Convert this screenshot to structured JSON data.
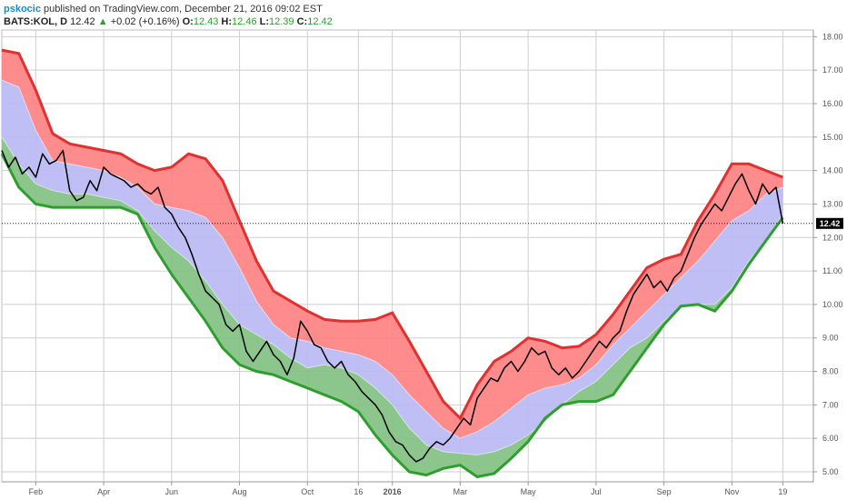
{
  "header": {
    "author": "pskocic",
    "published": "published on TradingView.com, December 21, 2016 09:02 EST"
  },
  "ticker": {
    "symbol": "BATS:KOL, D",
    "last": "12.42",
    "arrow": "▲",
    "change": "+0.02 (+0.16%)",
    "open_label": "O:",
    "open": "12.43",
    "high_label": "H:",
    "high": "12.46",
    "low_label": "L:",
    "low": "12.39",
    "close_label": "C:",
    "close": "12.42"
  },
  "price_tag": "12.42",
  "colors": {
    "upper_band": "#ff8080",
    "upper_band_line": "#e03030",
    "middle_band": "#b8b8f5",
    "lower_band": "#7fc07f",
    "lower_band_line": "#2e9e2e",
    "price_line": "#000000",
    "price_tag_bg": "#000000",
    "grid": "#cfcfcf"
  },
  "chart_data": {
    "type": "line",
    "ylim": [
      4.7,
      18.2
    ],
    "y_ticks": [
      5.0,
      6.0,
      7.0,
      8.0,
      9.0,
      10.0,
      11.0,
      12.0,
      13.0,
      14.0,
      15.0,
      16.0,
      17.0,
      18.0
    ],
    "x_ticks": [
      "Feb",
      "Apr",
      "Jun",
      "Aug",
      "Oct",
      "16",
      "2016",
      "Mar",
      "May",
      "Jul",
      "Sep",
      "Nov",
      "19"
    ],
    "x_tick_pos": [
      0.5,
      2.5,
      4.5,
      6.5,
      8.5,
      10.0,
      11.0,
      13.0,
      15.0,
      17.0,
      19.0,
      21.0,
      22.5
    ],
    "x_range": [
      -0.5,
      23.4
    ],
    "current_price": 12.42,
    "grid": true,
    "band_x": [
      -0.5,
      0.0,
      0.5,
      1.0,
      1.5,
      2.0,
      2.5,
      3.0,
      3.5,
      4.0,
      4.5,
      5.0,
      5.5,
      6.0,
      6.5,
      7.0,
      7.5,
      8.0,
      8.5,
      9.0,
      9.5,
      10.0,
      10.5,
      11.0,
      11.5,
      12.0,
      12.5,
      13.0,
      13.5,
      14.0,
      14.5,
      15.0,
      15.5,
      16.0,
      16.5,
      17.0,
      17.5,
      18.0,
      18.5,
      19.0,
      19.5,
      20.0,
      20.5,
      21.0,
      21.5,
      22.0,
      22.5
    ],
    "series": [
      {
        "values": [
          17.6,
          17.5,
          16.4,
          15.1,
          14.8,
          14.7,
          14.6,
          14.5,
          14.2,
          14.0,
          14.1,
          14.5,
          14.35,
          13.7,
          12.5,
          11.3,
          10.4,
          10.1,
          9.8,
          9.55,
          9.5,
          9.5,
          9.55,
          9.75,
          8.9,
          8.0,
          7.1,
          6.6,
          7.6,
          8.3,
          8.6,
          9.0,
          8.9,
          8.7,
          8.75,
          9.1,
          9.7,
          10.4,
          11.1,
          11.35,
          11.5,
          12.5,
          13.3,
          14.2,
          14.2,
          14.0,
          13.8
        ]
      },
      {
        "values": [
          16.7,
          16.5,
          15.2,
          14.3,
          14.2,
          14.1,
          14.0,
          13.8,
          13.5,
          13.0,
          12.9,
          12.8,
          12.6,
          12.0,
          11.1,
          10.1,
          9.4,
          9.0,
          8.9,
          8.7,
          8.6,
          8.5,
          8.3,
          7.9,
          7.3,
          6.8,
          6.3,
          6.0,
          6.2,
          6.5,
          6.9,
          7.3,
          7.5,
          7.6,
          7.8,
          8.2,
          8.8,
          9.3,
          9.8,
          10.3,
          10.8,
          11.3,
          11.9,
          12.5,
          12.8,
          13.3,
          13.5
        ]
      },
      {
        "values": [
          15.0,
          14.2,
          13.6,
          13.4,
          13.3,
          13.3,
          13.2,
          13.1,
          12.8,
          12.2,
          11.7,
          11.3,
          10.7,
          10.0,
          9.4,
          9.1,
          8.8,
          8.4,
          8.1,
          8.2,
          8.1,
          7.9,
          7.5,
          7.0,
          6.3,
          5.8,
          5.6,
          5.55,
          5.5,
          5.6,
          5.8,
          6.1,
          6.5,
          7.0,
          7.4,
          7.7,
          8.2,
          8.7,
          9.0,
          9.5,
          9.9,
          10.0,
          10.0,
          10.5,
          11.3,
          11.9,
          12.7
        ]
      },
      {
        "values": [
          14.5,
          13.5,
          13.0,
          12.9,
          12.9,
          12.9,
          12.9,
          12.9,
          12.7,
          11.7,
          10.9,
          10.2,
          9.5,
          8.7,
          8.2,
          8.0,
          7.9,
          7.7,
          7.5,
          7.3,
          7.1,
          6.8,
          6.1,
          5.5,
          5.0,
          4.9,
          5.1,
          5.2,
          4.85,
          4.95,
          5.4,
          5.9,
          6.6,
          7.0,
          7.1,
          7.1,
          7.3,
          8.0,
          8.7,
          9.4,
          9.95,
          10.0,
          9.8,
          10.4,
          11.2,
          11.9,
          12.6
        ]
      }
    ],
    "price_x": [
      -0.5,
      -0.3,
      -0.1,
      0.1,
      0.3,
      0.5,
      0.7,
      0.9,
      1.1,
      1.3,
      1.5,
      1.7,
      1.9,
      2.1,
      2.3,
      2.5,
      2.7,
      2.9,
      3.1,
      3.3,
      3.5,
      3.7,
      3.9,
      4.1,
      4.3,
      4.5,
      4.7,
      4.9,
      5.1,
      5.3,
      5.5,
      5.7,
      5.9,
      6.1,
      6.3,
      6.5,
      6.7,
      6.9,
      7.1,
      7.3,
      7.5,
      7.7,
      7.9,
      8.1,
      8.3,
      8.5,
      8.7,
      8.9,
      9.1,
      9.3,
      9.5,
      9.7,
      9.9,
      10.1,
      10.3,
      10.5,
      10.7,
      10.9,
      11.1,
      11.3,
      11.5,
      11.7,
      11.9,
      12.1,
      12.3,
      12.5,
      12.7,
      12.9,
      13.1,
      13.3,
      13.5,
      13.7,
      13.9,
      14.1,
      14.3,
      14.5,
      14.7,
      14.9,
      15.1,
      15.3,
      15.5,
      15.7,
      15.9,
      16.1,
      16.3,
      16.5,
      16.7,
      16.9,
      17.1,
      17.3,
      17.5,
      17.7,
      17.9,
      18.1,
      18.3,
      18.5,
      18.7,
      18.9,
      19.1,
      19.3,
      19.5,
      19.7,
      19.9,
      20.1,
      20.3,
      20.5,
      20.7,
      20.9,
      21.1,
      21.3,
      21.5,
      21.7,
      21.9,
      22.1,
      22.3,
      22.5
    ],
    "price_values": [
      14.6,
      14.1,
      14.4,
      13.9,
      14.1,
      13.8,
      14.5,
      14.2,
      14.3,
      14.6,
      13.4,
      13.1,
      13.2,
      13.7,
      13.4,
      14.1,
      13.9,
      13.8,
      13.7,
      13.5,
      13.6,
      13.4,
      13.3,
      13.5,
      12.9,
      12.7,
      12.3,
      12.0,
      11.5,
      10.9,
      10.4,
      10.2,
      10.0,
      9.4,
      9.2,
      9.4,
      8.6,
      8.3,
      8.6,
      8.9,
      8.5,
      8.3,
      7.9,
      8.4,
      9.5,
      9.2,
      8.8,
      8.7,
      8.3,
      8.1,
      8.3,
      7.9,
      7.7,
      7.4,
      7.2,
      7.0,
      6.7,
      6.2,
      5.9,
      5.8,
      5.5,
      5.3,
      5.4,
      5.7,
      5.9,
      5.8,
      6.0,
      6.3,
      6.6,
      6.4,
      7.2,
      7.5,
      7.8,
      7.7,
      8.1,
      8.3,
      8.0,
      8.3,
      8.7,
      8.5,
      8.6,
      8.1,
      7.9,
      8.1,
      7.8,
      8.0,
      8.3,
      8.6,
      8.9,
      8.7,
      9.0,
      9.2,
      9.8,
      10.3,
      10.6,
      10.9,
      10.5,
      10.7,
      10.4,
      10.8,
      11.0,
      11.5,
      12.0,
      12.4,
      12.7,
      13.0,
      12.8,
      13.2,
      13.6,
      13.9,
      13.4,
      13.0,
      13.6,
      13.3,
      13.5,
      12.42
    ]
  }
}
